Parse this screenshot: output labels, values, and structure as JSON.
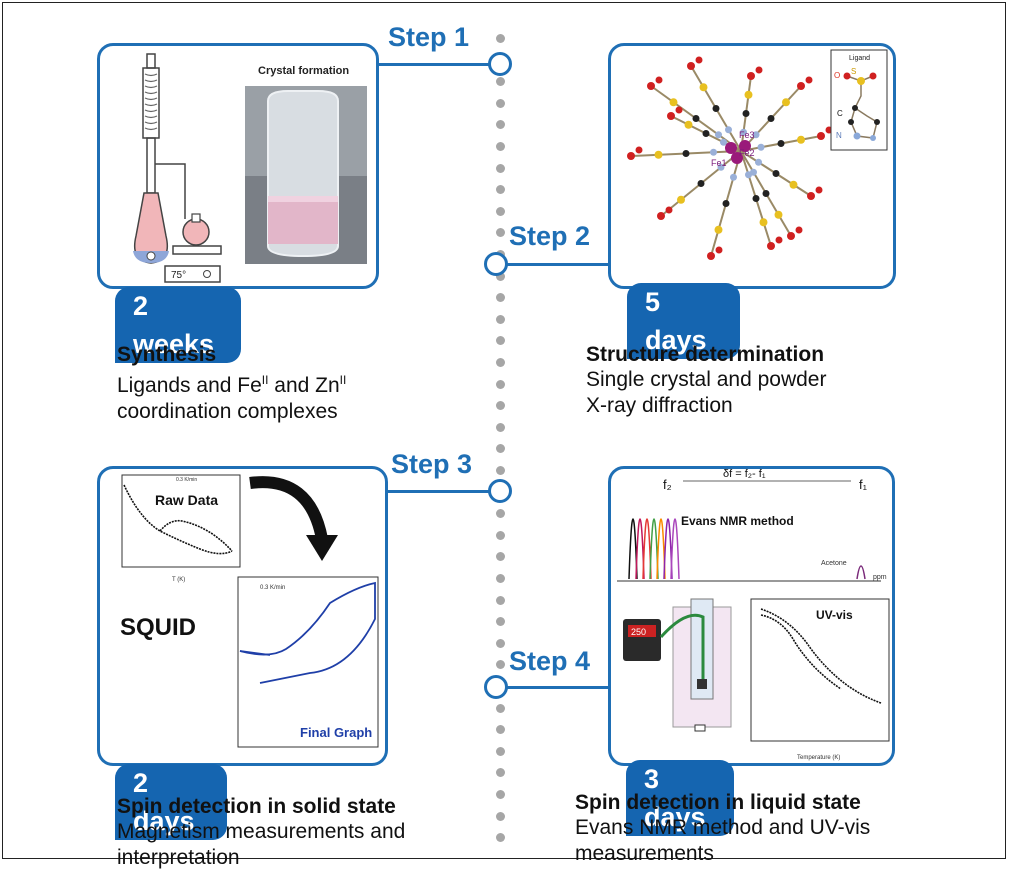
{
  "steps": [
    {
      "label": "Step 1",
      "duration": "2 weeks",
      "title": "Synthesis",
      "desc_line1": "Ligands and Fe",
      "desc_sup1": "II",
      "desc_mid": " and Zn",
      "desc_sup2": "II",
      "desc_line2": "coordination complexes",
      "image_caption": "Crystal formation",
      "temp_label": "75°"
    },
    {
      "label": "Step 2",
      "duration": "5 days",
      "title": "Structure determination",
      "desc_line1": "Single crystal and powder",
      "desc_line2": "X-ray diffraction",
      "legend_title": "Ligand",
      "legend_o": "O",
      "legend_s": "S",
      "legend_c": "C",
      "legend_n": "N",
      "fe1": "Fe1",
      "fe2": "Fe2",
      "fe3": "Fe3"
    },
    {
      "label": "Step 3",
      "duration": "2 days",
      "title": "Spin detection in solid state",
      "desc_line1": "Magnetism measurements and",
      "desc_line2": "interpretation",
      "raw_label": "Raw Data",
      "final_label": "Final Graph",
      "squid_label": "SQUID",
      "rate_label": "0.3 K/min",
      "xaxis_label": "T (K)"
    },
    {
      "label": "Step 4",
      "duration": "3 days",
      "title": "Spin detection in liquid state",
      "desc_line1": "Evans NMR method and UV-vis",
      "desc_line2": "measurements",
      "nmr_title": "Evans NMR method",
      "nmr_eq": "δf = f₂- f₁",
      "f2": "f₂",
      "f1": "f₁",
      "acetone": "Acetone",
      "ppm": "ppm",
      "uv_label": "UV-vis",
      "temp_axis": "Temperature (K)",
      "lcd": "250"
    }
  ],
  "colors": {
    "accent": "#1f6fb5",
    "badge": "#1565b0",
    "dots": "#a6a6a6"
  }
}
